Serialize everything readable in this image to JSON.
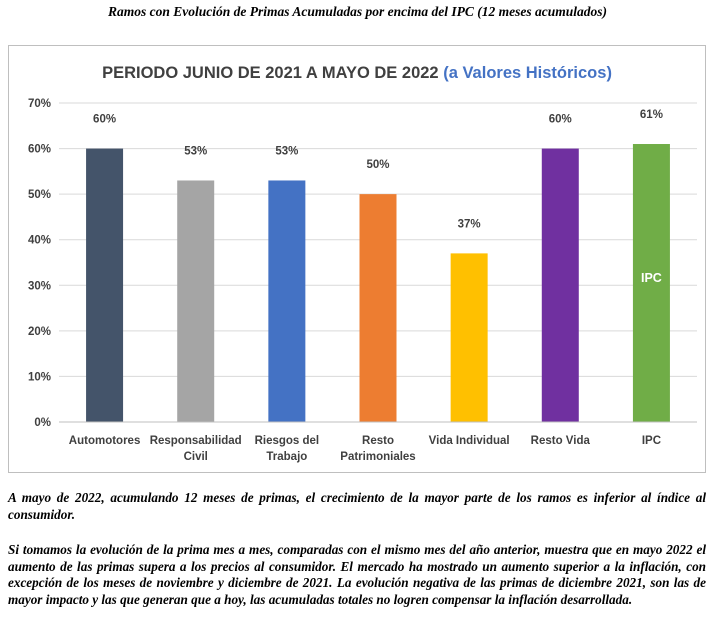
{
  "document": {
    "title": "Ramos con Evolución de Primas Acumuladas por encima del IPC (12 meses acumulados)",
    "paragraphs": [
      "A mayo de 2022, acumulando 12 meses de primas, el crecimiento de la mayor parte de los ramos es inferior al índice al consumidor.",
      "Si tomamos la evolución de la prima mes a mes, comparadas con el mismo mes del año anterior, muestra que en mayo 2022 el aumento de las primas supera a los precios al consumidor. El mercado ha mostrado un aumento superior a la inflación, con excepción de los meses de noviembre y diciembre de 2021.  La evolución negativa de las primas de diciembre 2021, son las de mayor impacto y las que generan que a hoy, las acumuladas totales no logren compensar la inflación desarrollada."
    ]
  },
  "chart_data": {
    "type": "bar",
    "title": "PERIODO JUNIO DE 2021 A MAYO DE 2022",
    "title_highlight": "(a Valores Históricos)",
    "categories": [
      "Automotores",
      "Responsabilidad Civil",
      "Riesgos del Trabajo",
      "Resto Patrimoniales",
      "Vida Individual",
      "Resto Vida",
      "IPC"
    ],
    "values": [
      60,
      53,
      53,
      50,
      37,
      60,
      61
    ],
    "data_labels": [
      "60%",
      "53%",
      "53%",
      "50%",
      "37%",
      "60%",
      "61%"
    ],
    "colors": [
      "#44546a",
      "#a5a5a5",
      "#4472c4",
      "#ed7d31",
      "#ffc000",
      "#7030a0",
      "#70ad47"
    ],
    "inner_label": {
      "index": 6,
      "text": "IPC"
    },
    "ylim": [
      0,
      70
    ],
    "yticks": [
      0,
      10,
      20,
      30,
      40,
      50,
      60,
      70
    ],
    "ytick_labels": [
      "0%",
      "10%",
      "20%",
      "30%",
      "40%",
      "50%",
      "60%",
      "70%"
    ],
    "grid": true,
    "xlabel": "",
    "ylabel": ""
  }
}
